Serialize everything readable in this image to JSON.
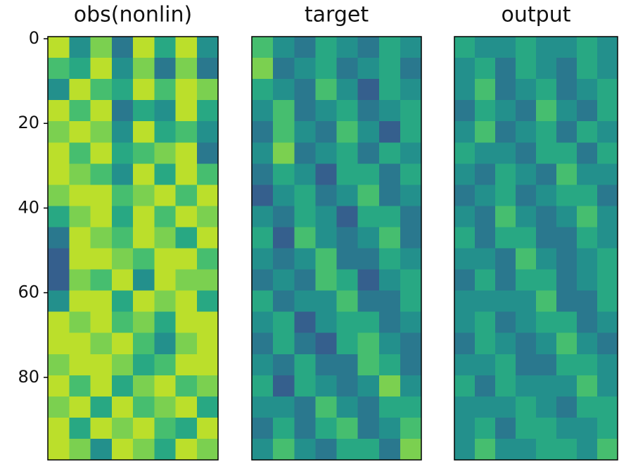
{
  "chart_data": [
    {
      "type": "heatmap",
      "title": "obs(nonlin)",
      "colormap": "viridis",
      "zlim": [
        0,
        1
      ],
      "xlim": [
        -0.5,
        39.5
      ],
      "ylim": [
        99.5,
        -0.5
      ],
      "yticks": [
        0,
        20,
        40,
        60,
        80
      ],
      "z": [
        [
          0.9,
          0.5,
          0.8,
          0.4,
          0.9,
          0.6,
          0.9,
          0.5
        ],
        [
          0.7,
          0.6,
          0.9,
          0.5,
          0.8,
          0.4,
          0.8,
          0.4
        ],
        [
          0.5,
          0.9,
          0.7,
          0.6,
          0.9,
          0.7,
          0.9,
          0.8
        ],
        [
          0.9,
          0.7,
          0.9,
          0.4,
          0.6,
          0.5,
          0.9,
          0.6
        ],
        [
          0.8,
          0.9,
          0.8,
          0.5,
          0.9,
          0.6,
          0.7,
          0.5
        ],
        [
          0.9,
          0.7,
          0.9,
          0.6,
          0.7,
          0.8,
          0.9,
          0.4
        ],
        [
          0.9,
          0.8,
          0.7,
          0.5,
          0.9,
          0.6,
          0.9,
          0.7
        ],
        [
          0.8,
          0.9,
          0.9,
          0.7,
          0.8,
          0.9,
          0.7,
          0.9
        ],
        [
          0.6,
          0.8,
          0.9,
          0.6,
          0.9,
          0.7,
          0.9,
          0.8
        ],
        [
          0.4,
          0.9,
          0.8,
          0.7,
          0.9,
          0.8,
          0.6,
          0.9
        ],
        [
          0.3,
          0.9,
          0.9,
          0.8,
          0.7,
          0.9,
          0.9,
          0.7
        ],
        [
          0.3,
          0.8,
          0.7,
          0.9,
          0.5,
          0.9,
          0.8,
          0.8
        ],
        [
          0.5,
          0.9,
          0.9,
          0.6,
          0.9,
          0.8,
          0.9,
          0.6
        ],
        [
          0.9,
          0.8,
          0.9,
          0.7,
          0.8,
          0.6,
          0.9,
          0.9
        ],
        [
          0.9,
          0.9,
          0.8,
          0.9,
          0.7,
          0.5,
          0.8,
          0.9
        ],
        [
          0.8,
          0.9,
          0.9,
          0.8,
          0.6,
          0.7,
          0.9,
          0.9
        ],
        [
          0.9,
          0.7,
          0.9,
          0.6,
          0.8,
          0.9,
          0.7,
          0.8
        ],
        [
          0.8,
          0.9,
          0.6,
          0.9,
          0.7,
          0.8,
          0.9,
          0.6
        ],
        [
          0.9,
          0.6,
          0.9,
          0.8,
          0.9,
          0.7,
          0.6,
          0.9
        ],
        [
          0.9,
          0.8,
          0.5,
          0.9,
          0.8,
          0.6,
          0.9,
          0.8
        ]
      ]
    },
    {
      "type": "heatmap",
      "title": "target",
      "colormap": "viridis",
      "zlim": [
        0,
        1
      ],
      "xlim": [
        -0.5,
        39.5
      ],
      "ylim": [
        99.5,
        -0.5
      ],
      "z": [
        [
          0.7,
          0.5,
          0.4,
          0.6,
          0.5,
          0.4,
          0.6,
          0.5
        ],
        [
          0.8,
          0.4,
          0.5,
          0.6,
          0.4,
          0.5,
          0.6,
          0.4
        ],
        [
          0.6,
          0.5,
          0.4,
          0.7,
          0.5,
          0.3,
          0.6,
          0.5
        ],
        [
          0.5,
          0.7,
          0.4,
          0.5,
          0.6,
          0.4,
          0.5,
          0.6
        ],
        [
          0.4,
          0.7,
          0.5,
          0.4,
          0.7,
          0.5,
          0.3,
          0.6
        ],
        [
          0.5,
          0.8,
          0.4,
          0.5,
          0.6,
          0.4,
          0.6,
          0.5
        ],
        [
          0.4,
          0.6,
          0.5,
          0.3,
          0.6,
          0.6,
          0.4,
          0.6
        ],
        [
          0.3,
          0.5,
          0.6,
          0.4,
          0.5,
          0.7,
          0.4,
          0.5
        ],
        [
          0.5,
          0.4,
          0.6,
          0.5,
          0.3,
          0.6,
          0.6,
          0.4
        ],
        [
          0.6,
          0.3,
          0.7,
          0.5,
          0.4,
          0.5,
          0.7,
          0.4
        ],
        [
          0.5,
          0.4,
          0.5,
          0.7,
          0.4,
          0.4,
          0.6,
          0.5
        ],
        [
          0.4,
          0.5,
          0.4,
          0.7,
          0.6,
          0.3,
          0.5,
          0.6
        ],
        [
          0.6,
          0.4,
          0.5,
          0.5,
          0.7,
          0.4,
          0.4,
          0.6
        ],
        [
          0.5,
          0.6,
          0.3,
          0.5,
          0.6,
          0.6,
          0.4,
          0.5
        ],
        [
          0.4,
          0.6,
          0.4,
          0.3,
          0.6,
          0.7,
          0.5,
          0.4
        ],
        [
          0.5,
          0.4,
          0.6,
          0.4,
          0.4,
          0.7,
          0.6,
          0.4
        ],
        [
          0.6,
          0.3,
          0.6,
          0.5,
          0.4,
          0.5,
          0.8,
          0.5
        ],
        [
          0.5,
          0.5,
          0.4,
          0.7,
          0.5,
          0.4,
          0.6,
          0.6
        ],
        [
          0.4,
          0.6,
          0.4,
          0.6,
          0.7,
          0.4,
          0.5,
          0.7
        ],
        [
          0.5,
          0.7,
          0.5,
          0.4,
          0.6,
          0.6,
          0.4,
          0.8
        ]
      ]
    },
    {
      "type": "heatmap",
      "title": "output",
      "colormap": "viridis",
      "zlim": [
        0,
        1
      ],
      "xlim": [
        -0.5,
        39.5
      ],
      "ylim": [
        99.5,
        -0.5
      ],
      "z": [
        [
          0.6,
          0.5,
          0.5,
          0.6,
          0.5,
          0.5,
          0.6,
          0.5
        ],
        [
          0.5,
          0.6,
          0.4,
          0.6,
          0.5,
          0.4,
          0.6,
          0.5
        ],
        [
          0.5,
          0.7,
          0.4,
          0.5,
          0.6,
          0.4,
          0.5,
          0.6
        ],
        [
          0.4,
          0.6,
          0.5,
          0.4,
          0.7,
          0.5,
          0.4,
          0.6
        ],
        [
          0.5,
          0.7,
          0.4,
          0.5,
          0.6,
          0.4,
          0.6,
          0.5
        ],
        [
          0.6,
          0.5,
          0.5,
          0.4,
          0.6,
          0.6,
          0.4,
          0.6
        ],
        [
          0.5,
          0.4,
          0.6,
          0.5,
          0.4,
          0.7,
          0.5,
          0.5
        ],
        [
          0.4,
          0.5,
          0.6,
          0.4,
          0.5,
          0.6,
          0.6,
          0.4
        ],
        [
          0.5,
          0.4,
          0.7,
          0.5,
          0.4,
          0.5,
          0.7,
          0.5
        ],
        [
          0.6,
          0.4,
          0.6,
          0.6,
          0.4,
          0.4,
          0.6,
          0.5
        ],
        [
          0.5,
          0.5,
          0.4,
          0.7,
          0.5,
          0.4,
          0.5,
          0.6
        ],
        [
          0.4,
          0.6,
          0.4,
          0.6,
          0.6,
          0.4,
          0.5,
          0.6
        ],
        [
          0.5,
          0.5,
          0.5,
          0.5,
          0.7,
          0.4,
          0.4,
          0.6
        ],
        [
          0.5,
          0.6,
          0.4,
          0.5,
          0.6,
          0.6,
          0.4,
          0.5
        ],
        [
          0.4,
          0.6,
          0.5,
          0.4,
          0.5,
          0.7,
          0.5,
          0.4
        ],
        [
          0.5,
          0.5,
          0.6,
          0.4,
          0.4,
          0.6,
          0.6,
          0.5
        ],
        [
          0.6,
          0.4,
          0.6,
          0.5,
          0.5,
          0.5,
          0.7,
          0.5
        ],
        [
          0.5,
          0.5,
          0.5,
          0.6,
          0.5,
          0.4,
          0.6,
          0.6
        ],
        [
          0.5,
          0.6,
          0.4,
          0.6,
          0.6,
          0.5,
          0.5,
          0.6
        ],
        [
          0.5,
          0.7,
          0.5,
          0.5,
          0.6,
          0.6,
          0.5,
          0.7
        ]
      ]
    }
  ]
}
